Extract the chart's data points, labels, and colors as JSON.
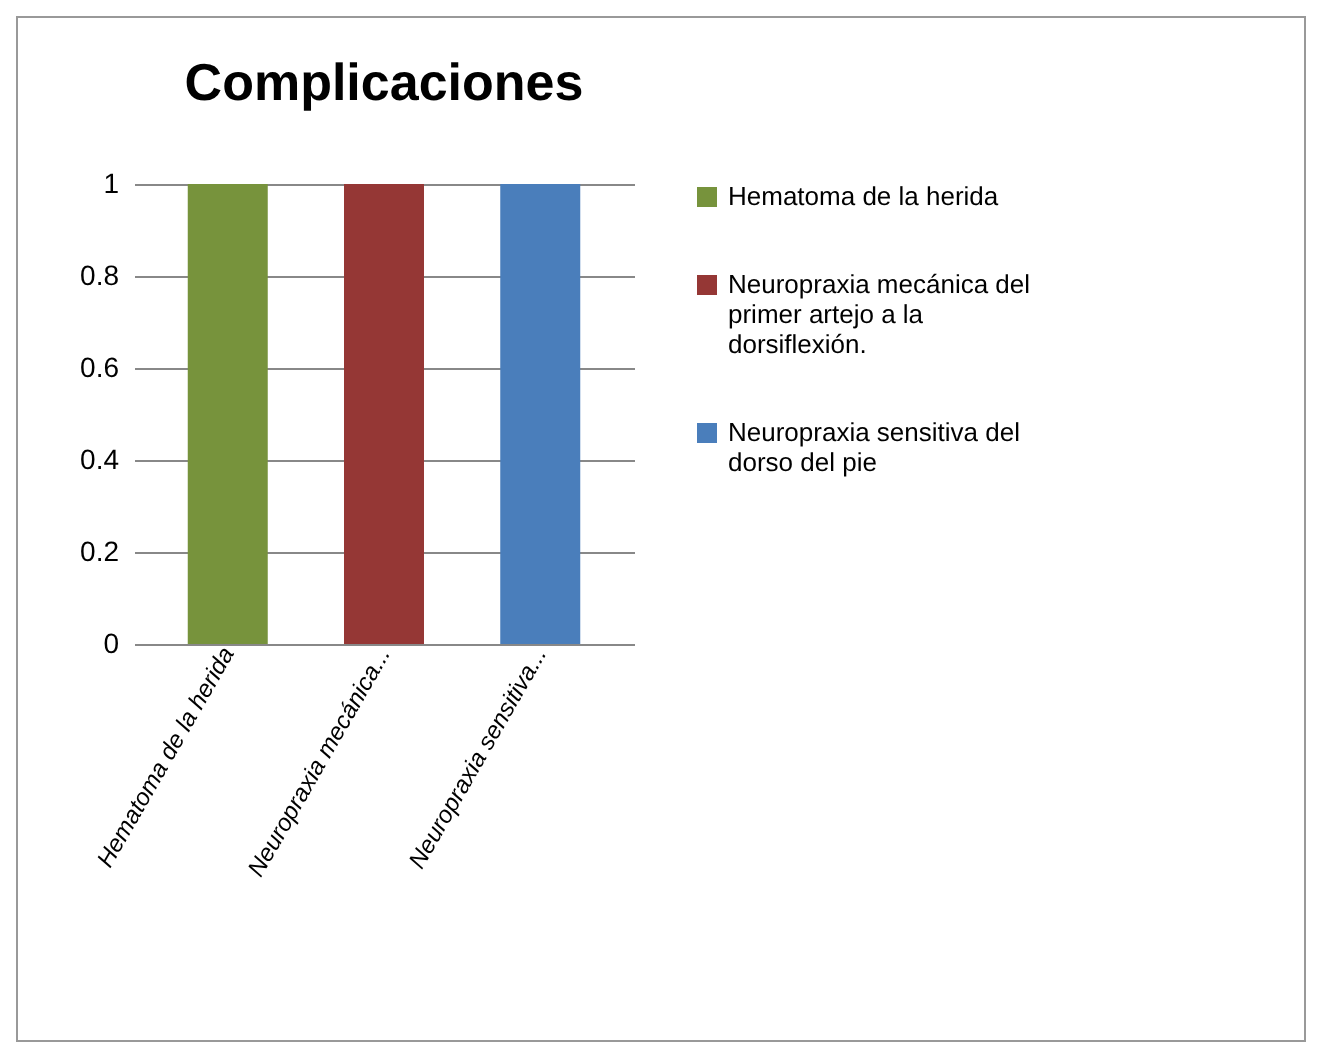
{
  "chart_data": {
    "type": "bar",
    "title": "Complicaciones",
    "categories": [
      "Hematoma de la herida",
      "Neuropraxia mecánica...",
      "Neuropraxia sensitiva..."
    ],
    "series": [
      {
        "name": "Hematoma de la herida",
        "color": "#77933c",
        "values": [
          1,
          null,
          null
        ]
      },
      {
        "name": "Neuropraxia mecánica del primer artejo a la dorsiflexión.",
        "color": "#953735",
        "values": [
          null,
          1,
          null
        ]
      },
      {
        "name": "Neuropraxia sensitiva del dorso del pie",
        "color": "#4a7ebb",
        "values": [
          null,
          null,
          1
        ]
      }
    ],
    "ylim": [
      0,
      1
    ],
    "yticks": [
      0,
      0.2,
      0.4,
      0.6,
      0.8,
      1
    ],
    "grid": "y",
    "legend": "right"
  }
}
